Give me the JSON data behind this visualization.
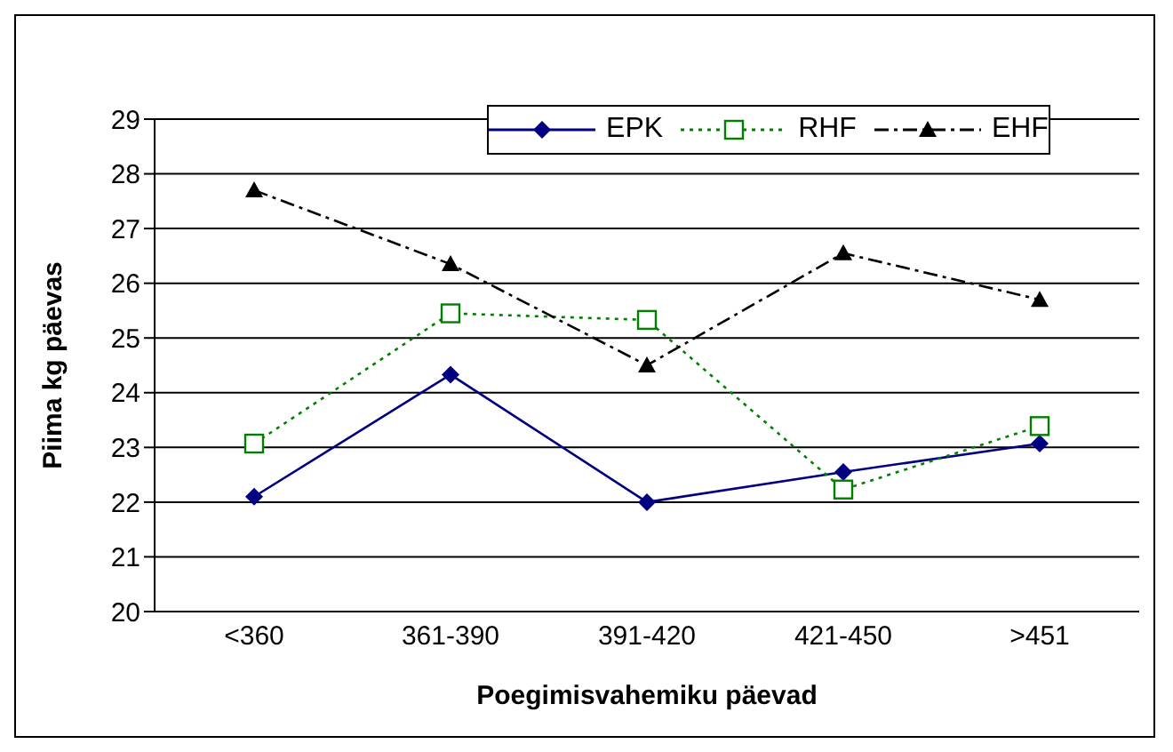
{
  "chart_data": {
    "type": "line",
    "xlabel": "Poegimisvahemiku päevad",
    "ylabel": "Piima kg päevas",
    "categories": [
      "<360",
      "361-390",
      "391-420",
      "421-450",
      ">451"
    ],
    "series": [
      {
        "name": "EPK",
        "color": "#000080",
        "values": [
          22.1,
          24.33,
          22.0,
          22.55,
          23.07
        ],
        "marker": "diamond",
        "line_style": "solid"
      },
      {
        "name": "RHF",
        "color": "#008000",
        "values": [
          23.07,
          25.45,
          25.33,
          22.23,
          23.39
        ],
        "marker": "square",
        "line_style": "dotted"
      },
      {
        "name": "EHF",
        "color": "#000000",
        "values": [
          27.7,
          26.35,
          24.5,
          26.55,
          25.7
        ],
        "marker": "triangle",
        "line_style": "dashdot"
      }
    ],
    "ylim": [
      20,
      29
    ],
    "yticks": [
      20,
      21,
      22,
      23,
      24,
      25,
      26,
      27,
      28,
      29
    ],
    "grid": "y",
    "legend": "top"
  }
}
